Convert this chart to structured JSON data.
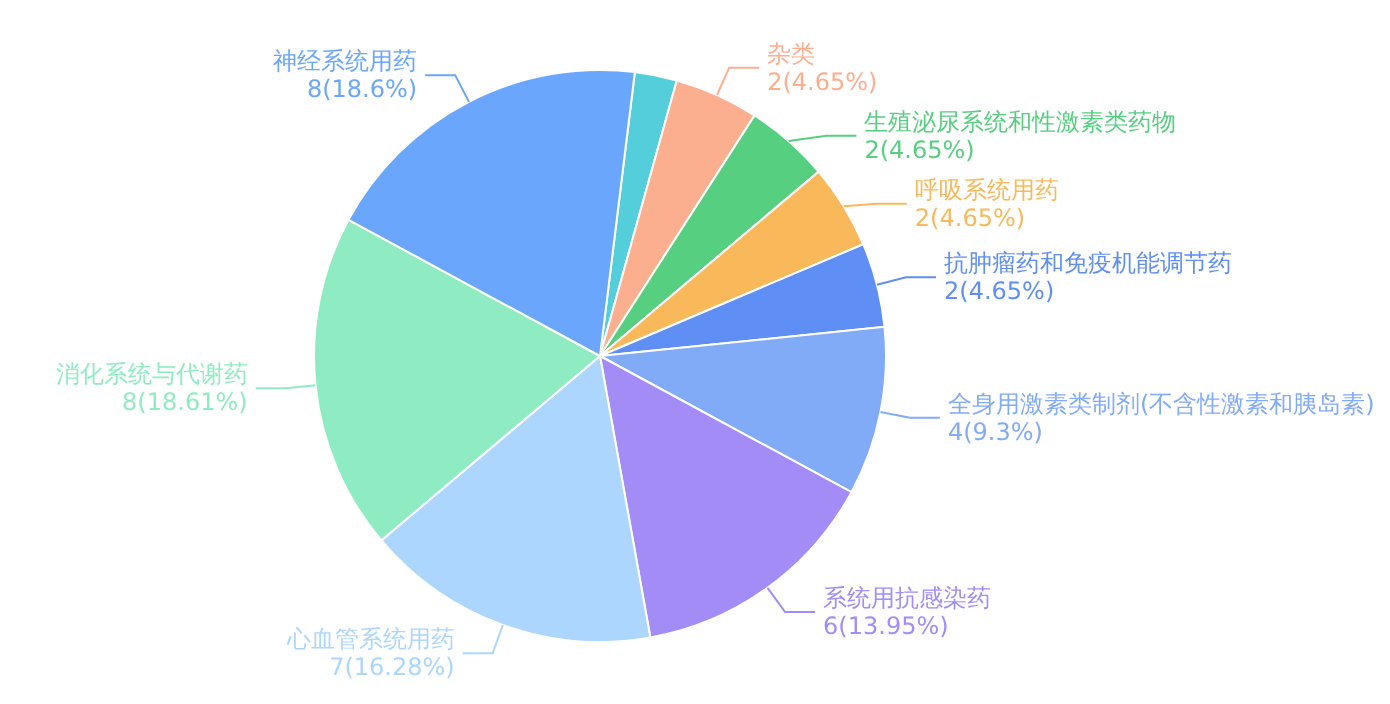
{
  "chart_data": {
    "type": "pie",
    "categories": [
      null,
      "杂类",
      "生殖泌尿系统和性激素类药物",
      "呼吸系统用药",
      "抗肿瘤药和免疫机能调节药",
      "全身用激素类制剂(不含性激素和胰岛素)",
      "系统用抗感染药",
      "心血管系统用药",
      "消化系统与代谢药",
      "神经系统用药"
    ],
    "values": [
      1,
      2,
      2,
      2,
      2,
      4,
      6,
      7,
      8,
      8
    ],
    "colors": [
      "#55cedb",
      "#fcaf8f",
      "#57cf80",
      "#f9b95a",
      "#5f8ef5",
      "#82abf7",
      "#a48cf7",
      "#acd6fe",
      "#8febc2",
      "#6aa7fc"
    ],
    "value_labels": [
      null,
      "2(4.65%)",
      "2(4.65%)",
      "2(4.65%)",
      "2(4.65%)",
      "4(9.3%)",
      "6(13.95%)",
      "7(16.28%)",
      "8(18.61%)",
      "8(18.6%)"
    ]
  }
}
